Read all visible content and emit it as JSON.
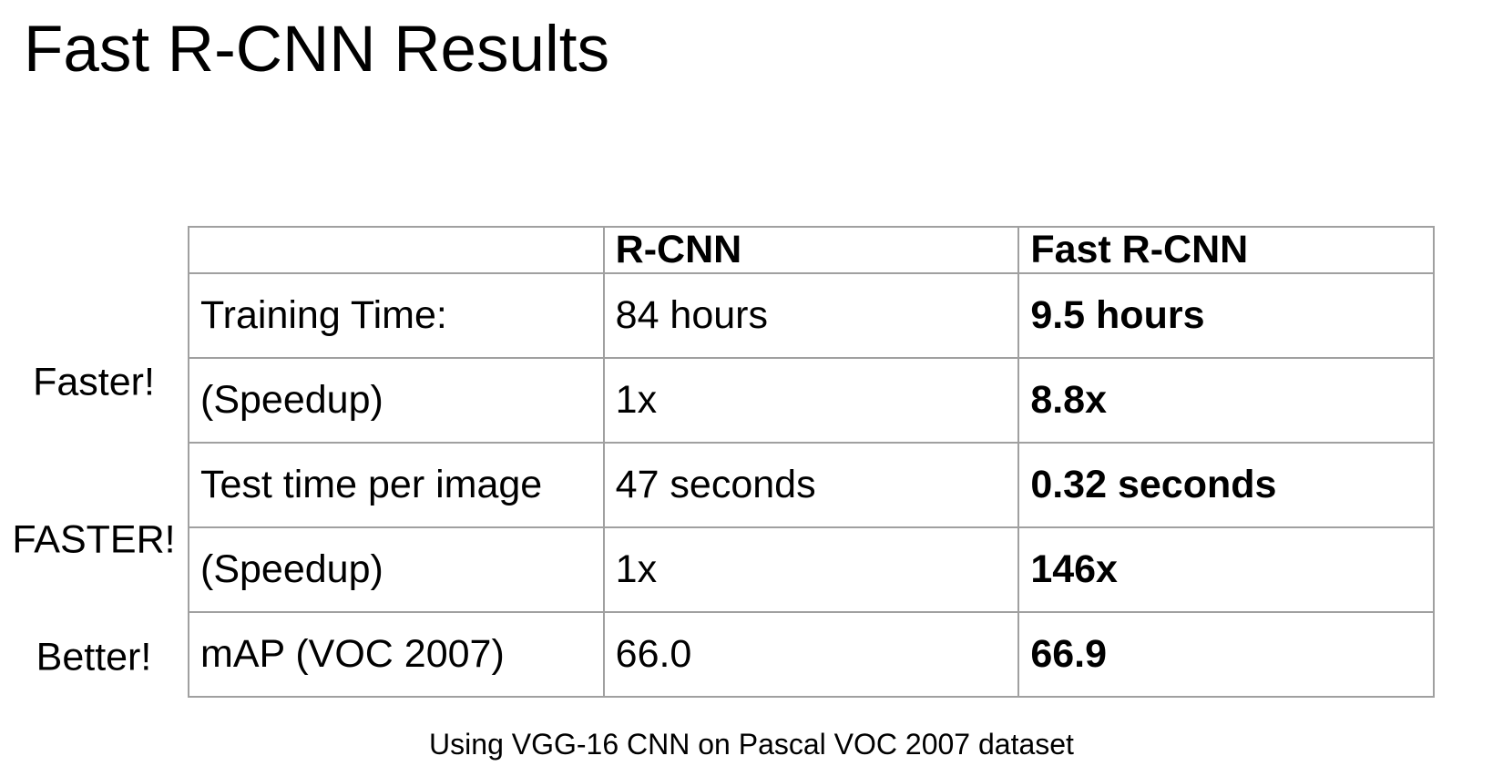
{
  "slide": {
    "title": "Fast R-CNN Results",
    "caption": "Using VGG-16 CNN on Pascal VOC 2007 dataset"
  },
  "annotations": {
    "training": "Faster!",
    "test": "FASTER!",
    "map": "Better!"
  },
  "table": {
    "columns": [
      "",
      "R-CNN",
      "Fast R-CNN"
    ],
    "rows": [
      {
        "metric": "Training Time:",
        "rcnn": "84 hours",
        "fast_rcnn": "9.5 hours"
      },
      {
        "metric": "(Speedup)",
        "rcnn": "1x",
        "fast_rcnn": "8.8x"
      },
      {
        "metric": "Test time per image",
        "rcnn": "47 seconds",
        "fast_rcnn": "0.32 seconds"
      },
      {
        "metric": "(Speedup)",
        "rcnn": "1x",
        "fast_rcnn": "146x"
      },
      {
        "metric": "mAP (VOC 2007)",
        "rcnn": "66.0",
        "fast_rcnn": "66.9"
      }
    ]
  },
  "colors": {
    "text": "#000000",
    "border": "#a0a0a0",
    "background": "#ffffff"
  }
}
